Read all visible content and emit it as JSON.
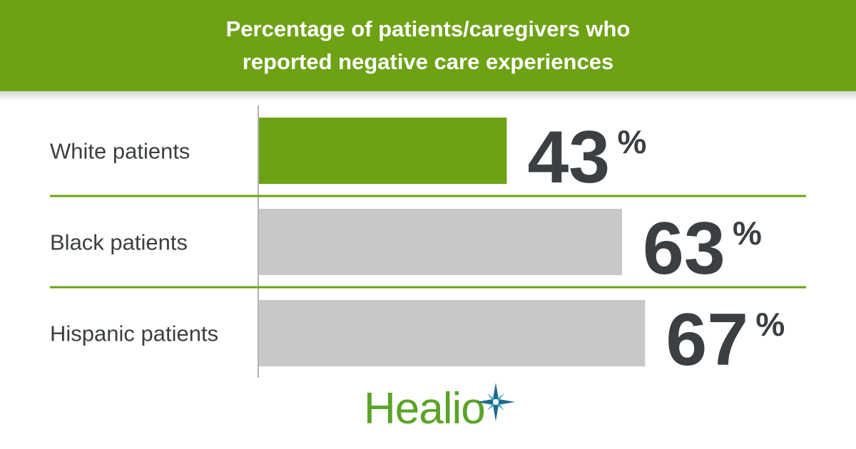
{
  "title_lines": [
    "Percentage of patients/caregivers who",
    "reported negative care experiences"
  ],
  "colors": {
    "header_bg": "#6da214",
    "highlight_bar": "#6da214",
    "other_bar": "#c8c8c8",
    "divider": "#6da214",
    "text": "#3b3f42",
    "logo": "#5aa427"
  },
  "chart_data": {
    "type": "bar",
    "orientation": "horizontal",
    "title": "Percentage of patients/caregivers who reported negative care experiences",
    "categories": [
      "White patients",
      "Black patients",
      "Hispanic patients"
    ],
    "values": [
      43,
      63,
      67
    ],
    "unit": "%",
    "highlight_index": 0,
    "xlim": [
      0,
      100
    ]
  },
  "logo": {
    "text": "Healio",
    "icon": "star-compass-icon"
  }
}
